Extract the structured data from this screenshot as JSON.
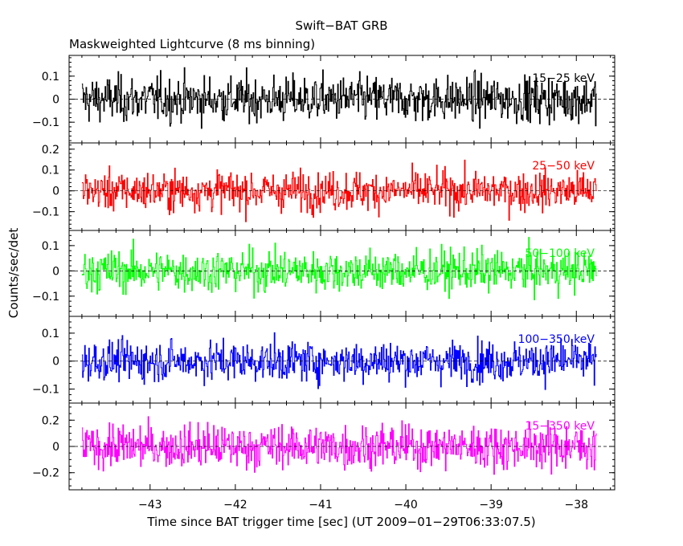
{
  "chart_data": {
    "type": "line",
    "title": "Swift−BAT GRB",
    "subtitle": "Maskweighted Lightcurve (8 ms binning)",
    "xlabel": "Time since BAT trigger time [sec] (UT 2009−01−29T06:33:07.5)",
    "ylabel": "Counts/sec/det",
    "xlim": [
      -43.95,
      -37.55
    ],
    "x_ticks": [
      -43,
      -42,
      -41,
      -40,
      -39,
      -38
    ],
    "x_tick_labels": [
      "−43",
      "−42",
      "−41",
      "−40",
      "−39",
      "−38"
    ],
    "data_x_range": [
      -43.8,
      -37.76
    ],
    "bin_width_sec": 0.008,
    "panels": [
      {
        "band": "15−25 keV",
        "color": "#000000",
        "ylim": [
          -0.19,
          0.19
        ],
        "amplitude": 0.09,
        "y_ticks": [
          0.1,
          0,
          -0.1
        ],
        "y_tick_labels": [
          "0.1",
          "0",
          "−0.1"
        ],
        "minor_step": 0.02
      },
      {
        "band": "25−50 keV",
        "color": "#ff0000",
        "ylim": [
          -0.19,
          0.23
        ],
        "amplitude": 0.085,
        "y_ticks": [
          0.2,
          0.1,
          0,
          -0.1
        ],
        "y_tick_labels": [
          "0.2",
          "0.1",
          "0",
          "−0.1"
        ],
        "minor_step": 0.02
      },
      {
        "band": "50−100 keV",
        "color": "#00ff00",
        "ylim": [
          -0.18,
          0.16
        ],
        "amplitude": 0.075,
        "y_ticks": [
          0.1,
          0,
          -0.1
        ],
        "y_tick_labels": [
          "0.1",
          "0",
          "−0.1"
        ],
        "minor_step": 0.02
      },
      {
        "band": "100−350 keV",
        "color": "#0000ff",
        "ylim": [
          -0.15,
          0.16
        ],
        "amplitude": 0.065,
        "y_ticks": [
          0.1,
          0,
          -0.1
        ],
        "y_tick_labels": [
          "0.1",
          "0",
          "−0.1"
        ],
        "minor_step": 0.02
      },
      {
        "band": "15−350 keV",
        "color": "#ff00ff",
        "ylim": [
          -0.33,
          0.33
        ],
        "amplitude": 0.15,
        "y_ticks": [
          0.2,
          0,
          -0.2
        ],
        "y_tick_labels": [
          "0.2",
          "0",
          "−0.2"
        ],
        "minor_step": 0.05
      }
    ]
  }
}
